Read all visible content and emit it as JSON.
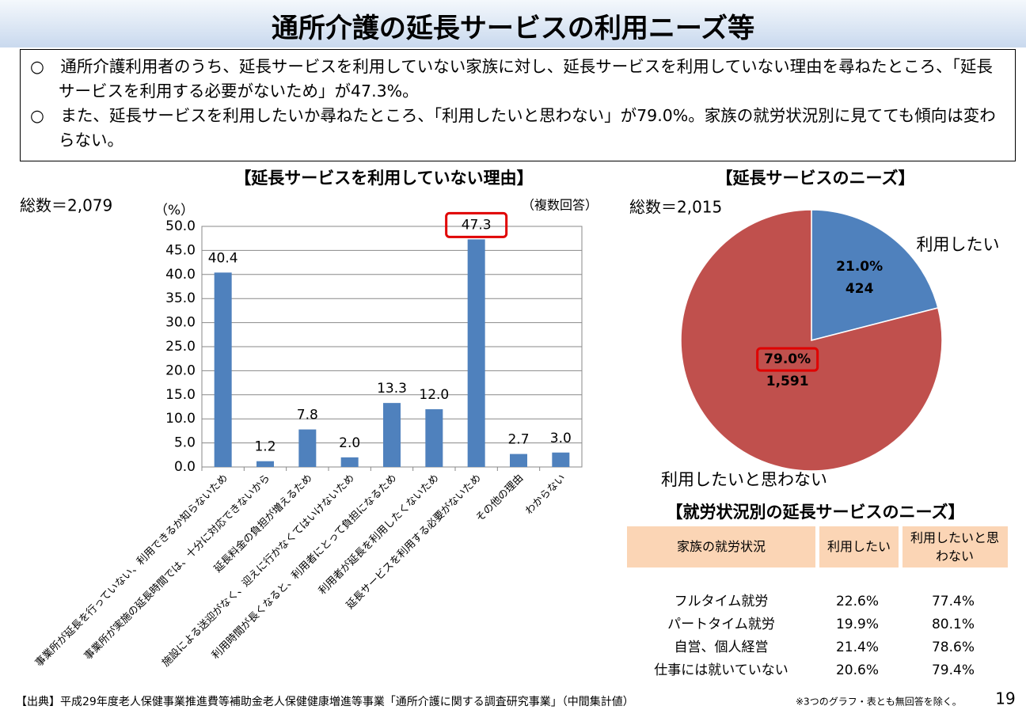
{
  "header": {
    "title": "通所介護の延長サービスの利用ニーズ等"
  },
  "summary": [
    "○　通所介護利用者のうち、延長サービスを利用していない家族に対し、延長サービスを利用していない理由を尋ねたところ、「延長サービスを利用する必要がないため」が47.3%。",
    "○　また、延長サービスを利用したいか尋ねたところ、「利用したいと思わない」が79.0%。家族の就労状況別に見てても傾向は変わらない。"
  ],
  "chart_data": [
    {
      "type": "bar",
      "title": "【延長サービスを利用していない理由】",
      "total": "総数＝2,079",
      "y_unit": "（%）",
      "note": "（複数回答）",
      "categories": [
        "事業所が延長を行っていない、利用できるか知らないため",
        "事業所が実施の延長時間では、十分に対応できないから",
        "延長料金の負担が増えるため",
        "施設による送迎がなく、迎えに行かなくてはいけないため",
        "利用時間が長くなると、利用者にとって負担になるため",
        "利用者が延長を利用したくないため",
        "延長サービスを利用する必要がないため",
        "その他の理由",
        "わからない"
      ],
      "values": [
        40.4,
        1.2,
        7.8,
        2.0,
        13.3,
        12.0,
        47.3,
        2.7,
        3.0
      ],
      "value_labels": [
        "40.4",
        "1.2",
        "7.8",
        "2.0",
        "13.3",
        "12.0",
        "47.3",
        "2.7",
        "3.0"
      ],
      "color": "#4f81bd",
      "highlight_index": 6,
      "ylim": [
        0,
        50
      ],
      "yticks": [
        {
          "value": 0,
          "label": "0.0"
        },
        {
          "value": 5,
          "label": "5.0"
        },
        {
          "value": 10,
          "label": "10.0"
        },
        {
          "value": 15,
          "label": "15.0"
        },
        {
          "value": 20,
          "label": "20.0"
        },
        {
          "value": 25,
          "label": "25.0"
        },
        {
          "value": 30,
          "label": "30.0"
        },
        {
          "value": 35,
          "label": "35.0"
        },
        {
          "value": 40,
          "label": "40.0"
        },
        {
          "value": 45,
          "label": "45.0"
        },
        {
          "value": 50,
          "label": "50.0"
        }
      ],
      "grid": true
    },
    {
      "type": "pie",
      "title": "【延長サービスのニーズ】",
      "total": "総数＝2,015",
      "categories": [
        "利用したい",
        "利用したいと思わない"
      ],
      "values": [
        21.0,
        79.0
      ],
      "value_labels": [
        "21.0%",
        "79.0%"
      ],
      "counts": [
        424,
        1591
      ],
      "count_labels": [
        "424",
        "1,591"
      ],
      "colors": [
        "#4f81bd",
        "#c0504d"
      ],
      "highlight_index": 1
    }
  ],
  "table": {
    "title": "【就労状況別の延長サービスのニーズ】",
    "header": [
      "家族の就労状況",
      "利用したい",
      "利用したいと思わない"
    ],
    "rows": [
      [
        "フルタイム就労",
        "22.6%",
        "77.4%"
      ],
      [
        "パートタイム就労",
        "19.9%",
        "80.1%"
      ],
      [
        "自営、個人経営",
        "21.4%",
        "78.6%"
      ],
      [
        "仕事には就いていない",
        "20.6%",
        "79.4%"
      ]
    ]
  },
  "footer": {
    "source": "【出典】平成29年度老人保健事業推進費等補助金老人保健健康増進等事業「通所介護に関する調査研究事業」（中間集計値）",
    "note": "※3つのグラフ・表とも無回答を除く。",
    "page": "19"
  }
}
